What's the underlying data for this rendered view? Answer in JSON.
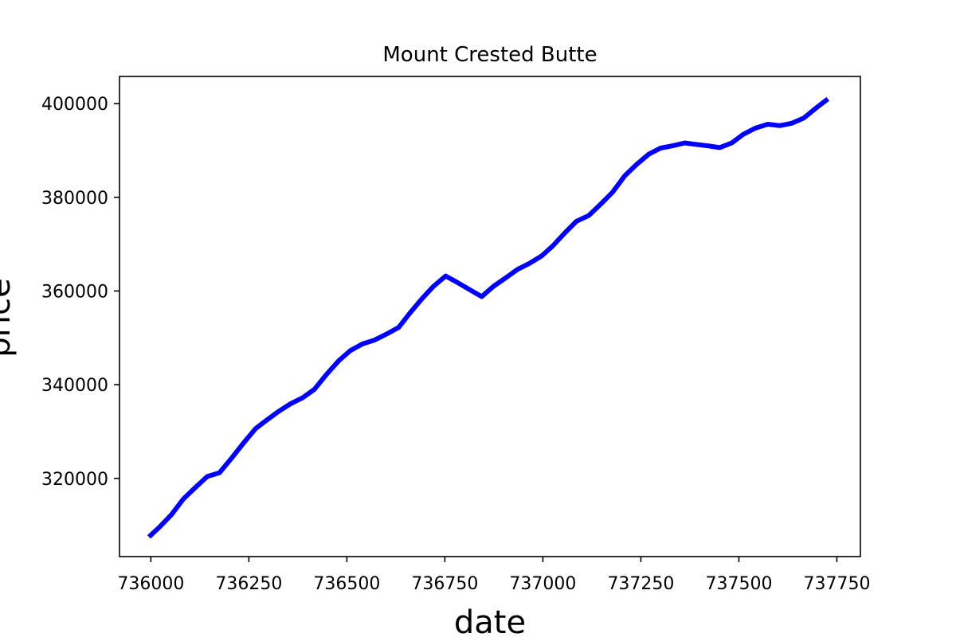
{
  "chart_data": {
    "type": "line",
    "title": "Mount Crested Butte",
    "xlabel": "date",
    "ylabel": "price",
    "xlim": [
      735920,
      737810
    ],
    "ylim": [
      303300,
      405800
    ],
    "x_ticks": [
      736000,
      736250,
      736500,
      736750,
      737000,
      737250,
      737500,
      737750
    ],
    "y_ticks": [
      320000,
      340000,
      360000,
      380000,
      400000
    ],
    "grid": false,
    "legend": "none",
    "series": [
      {
        "color": "#0000ff",
        "x": [
          735995,
          736022,
          736052,
          736083,
          736114,
          736144,
          736175,
          736205,
          736236,
          736267,
          736295,
          736326,
          736356,
          736387,
          736417,
          736448,
          736479,
          736509,
          736540,
          736570,
          736601,
          736632,
          736660,
          736691,
          736721,
          736752,
          736782,
          736813,
          736844,
          736874,
          736905,
          736935,
          736966,
          736997,
          737025,
          737056,
          737086,
          737117,
          737147,
          737178,
          737209,
          737239,
          737270,
          737300,
          737331,
          737362,
          737390,
          737421,
          737451,
          737482,
          737512,
          737543,
          737574,
          737604,
          737635,
          737665,
          737696,
          737727
        ],
        "y": [
          307500,
          309600,
          312200,
          315600,
          318100,
          320400,
          321200,
          324200,
          327500,
          330600,
          332400,
          334300,
          335900,
          337200,
          339000,
          342200,
          345100,
          347300,
          348700,
          349500,
          350800,
          352200,
          355200,
          358300,
          361000,
          363200,
          361800,
          360300,
          358800,
          361000,
          362800,
          364600,
          365900,
          367500,
          369600,
          372400,
          374900,
          376100,
          378500,
          381100,
          384600,
          387000,
          389200,
          390500,
          391000,
          391600,
          391300,
          391000,
          390600,
          391600,
          393500,
          394800,
          395600,
          395300,
          395800,
          396900,
          399000,
          401000
        ]
      }
    ]
  }
}
